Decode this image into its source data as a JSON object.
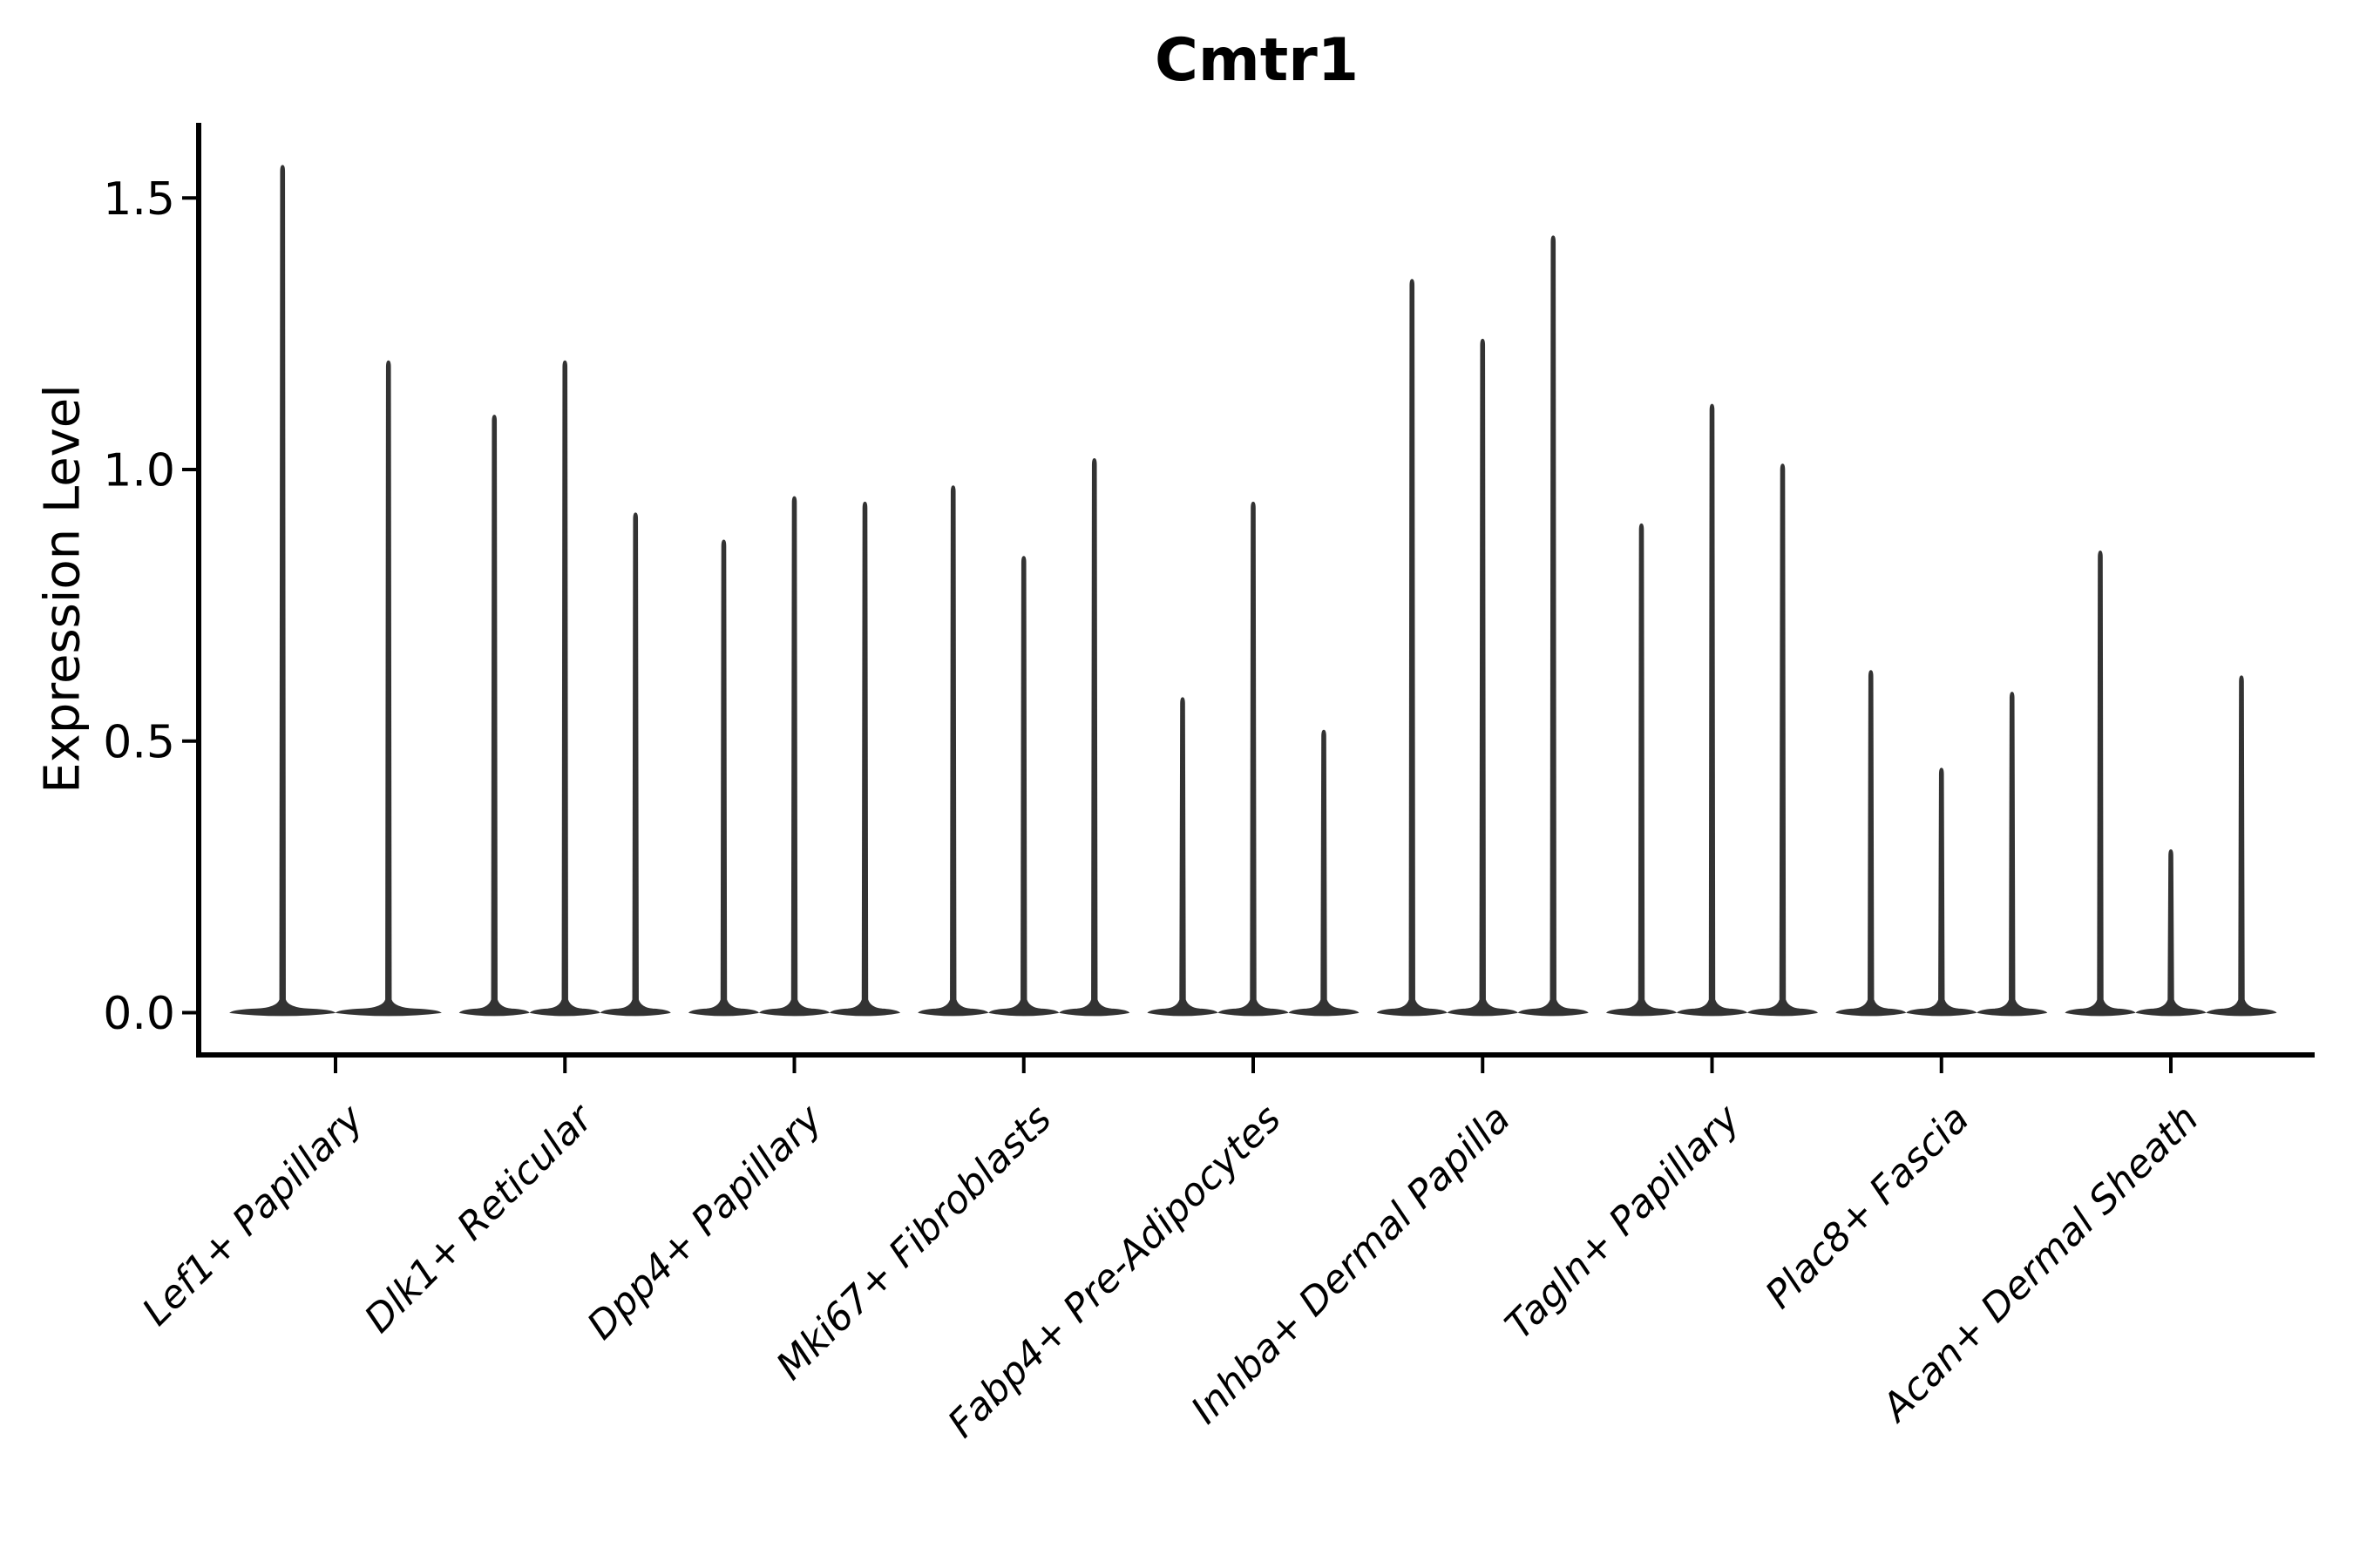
{
  "page": {
    "background": "#ffffff"
  },
  "header": {
    "title": "Cmtr1"
  },
  "y_axis": {
    "label": "Expression Level",
    "tick_labels": [
      "0.0",
      "0.5",
      "1.0",
      "1.5"
    ]
  },
  "chart_data": {
    "type": "violin",
    "title": "Cmtr1",
    "xlabel": "",
    "ylabel": "Expression Level",
    "ylim": [
      -0.08,
      1.64
    ],
    "yticks": [
      0.0,
      0.5,
      1.0,
      1.5
    ],
    "ytick_labels": [
      "0.0",
      "0.5",
      "1.0",
      "1.5"
    ],
    "grid": false,
    "legend_position": "none",
    "violin_color": "#333333",
    "axis_color": "#000000",
    "note": "Each violin is a near-zero-width density: a flat lens of probability mass at expression 0 plus a thin vertical spike reaching the listed maximum expression value. Category label text is italic and rotated 45 degrees.",
    "categories": [
      "Lef1+ Papillary",
      "Dlk1+ Reticular",
      "Dpp4+ Papillary",
      "Mki67+ Fibroblasts",
      "Fabp4+ Pre-Adipocytes",
      "Inhba+ Dermal Papilla",
      "Tagln+ Papillary",
      "Plac8+ Fascia",
      "Acan+ Dermal Sheath"
    ],
    "groups": [
      {
        "category": "Lef1+ Papillary",
        "violin_max_values": [
          1.56,
          1.2
        ]
      },
      {
        "category": "Dlk1+ Reticular",
        "violin_max_values": [
          1.1,
          1.2,
          0.92
        ]
      },
      {
        "category": "Dpp4+ Papillary",
        "violin_max_values": [
          0.87,
          0.95,
          0.94
        ]
      },
      {
        "category": "Mki67+ Fibroblasts",
        "violin_max_values": [
          0.97,
          0.84,
          1.02
        ]
      },
      {
        "category": "Fabp4+ Pre-Adipocytes",
        "violin_max_values": [
          0.58,
          0.94,
          0.52
        ]
      },
      {
        "category": "Inhba+ Dermal Papilla",
        "violin_max_values": [
          1.35,
          1.24,
          1.43
        ]
      },
      {
        "category": "Tagln+ Papillary",
        "violin_max_values": [
          0.9,
          1.12,
          1.01
        ]
      },
      {
        "category": "Plac8+ Fascia",
        "violin_max_values": [
          0.63,
          0.45,
          0.59
        ]
      },
      {
        "category": "Acan+ Dermal Sheath",
        "violin_max_values": [
          0.85,
          0.3,
          0.62
        ]
      }
    ]
  }
}
